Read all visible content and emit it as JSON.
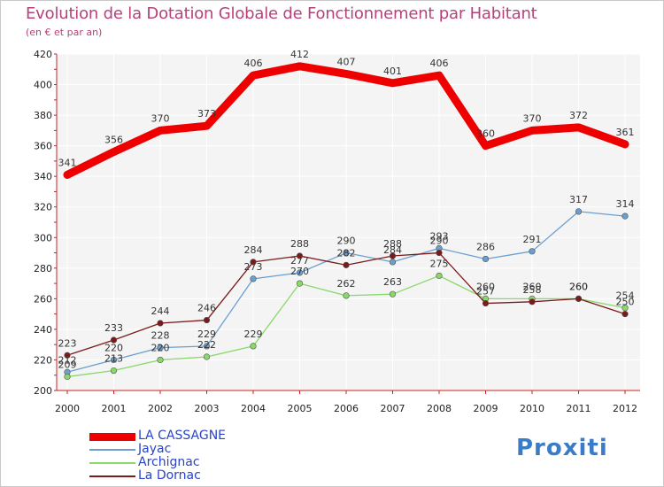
{
  "chart_data": {
    "type": "line",
    "title": "Evolution de la Dotation Globale de Fonctionnement par Habitant",
    "subtitle": "(en € et par an)",
    "xlabel": "",
    "ylabel": "",
    "x": [
      "2000",
      "2001",
      "2002",
      "2003",
      "2004",
      "2005",
      "2006",
      "2007",
      "2008",
      "2009",
      "2010",
      "2011",
      "2012"
    ],
    "ylim": [
      200,
      420
    ],
    "yticks": [
      200,
      220,
      240,
      260,
      280,
      300,
      320,
      340,
      360,
      380,
      400,
      420
    ],
    "grid": true,
    "legend_position": "bottom-left",
    "series": [
      {
        "name": "LA CASSAGNE",
        "color": "#ee0000",
        "values": [
          341,
          356,
          370,
          373,
          406,
          412,
          407,
          401,
          406,
          360,
          370,
          372,
          361
        ]
      },
      {
        "name": "Jayac",
        "color": "#6a9fd0",
        "values": [
          212,
          220,
          228,
          229,
          273,
          277,
          290,
          284,
          293,
          286,
          291,
          317,
          314
        ]
      },
      {
        "name": "Archignac",
        "color": "#88d86a",
        "values": [
          209,
          213,
          220,
          222,
          229,
          270,
          262,
          263,
          275,
          260,
          260,
          260,
          254
        ]
      },
      {
        "name": "La Dornac",
        "color": "#7a1a1a",
        "values": [
          223,
          233,
          244,
          246,
          284,
          288,
          282,
          288,
          290,
          257,
          258,
          260,
          250
        ]
      }
    ]
  },
  "branding": {
    "logo_text": "Proxiti"
  }
}
